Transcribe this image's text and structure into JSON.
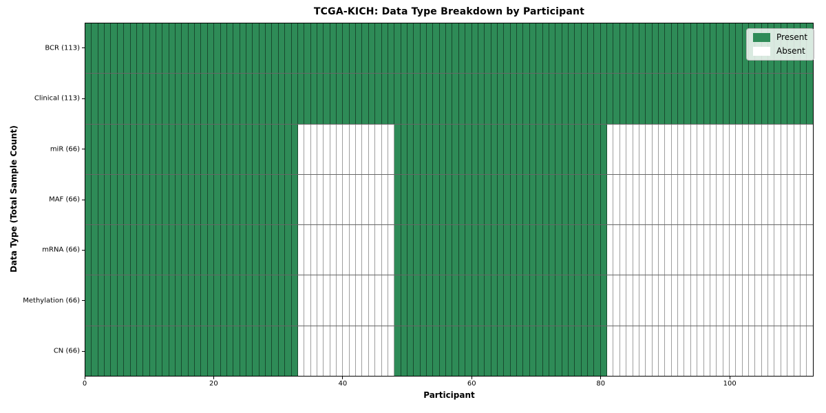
{
  "chart_data": {
    "type": "heatmap",
    "title": "TCGA-KICH: Data Type Breakdown by Participant",
    "xlabel": "Participant",
    "ylabel": "Data Type (Total Sample Count)",
    "x_ticks": [
      0,
      20,
      40,
      60,
      80,
      100
    ],
    "xlim": [
      0,
      113
    ],
    "n_participants": 113,
    "grid": "cell-borders",
    "legend_position": "upper-right",
    "colors": {
      "present": "#2e8b57",
      "absent": "#ffffff"
    },
    "legend": [
      {
        "label": "Present",
        "state": "present"
      },
      {
        "label": "Absent",
        "state": "absent"
      }
    ],
    "rows": [
      {
        "label": "BCR (113)",
        "data_type": "BCR",
        "total_samples": 113,
        "present_segments": [
          [
            0,
            113
          ]
        ]
      },
      {
        "label": "Clinical (113)",
        "data_type": "Clinical",
        "total_samples": 113,
        "present_segments": [
          [
            0,
            113
          ]
        ]
      },
      {
        "label": "miR (66)",
        "data_type": "miR",
        "total_samples": 66,
        "present_segments": [
          [
            0,
            33
          ],
          [
            48,
            81
          ]
        ]
      },
      {
        "label": "MAF (66)",
        "data_type": "MAF",
        "total_samples": 66,
        "present_segments": [
          [
            0,
            33
          ],
          [
            48,
            81
          ]
        ]
      },
      {
        "label": "mRNA (66)",
        "data_type": "mRNA",
        "total_samples": 66,
        "present_segments": [
          [
            0,
            33
          ],
          [
            48,
            81
          ]
        ]
      },
      {
        "label": "Methylation (66)",
        "data_type": "Methylation",
        "total_samples": 66,
        "present_segments": [
          [
            0,
            33
          ],
          [
            48,
            81
          ]
        ]
      },
      {
        "label": "CN (66)",
        "data_type": "CN",
        "total_samples": 66,
        "present_segments": [
          [
            0,
            33
          ],
          [
            48,
            81
          ]
        ]
      }
    ]
  }
}
